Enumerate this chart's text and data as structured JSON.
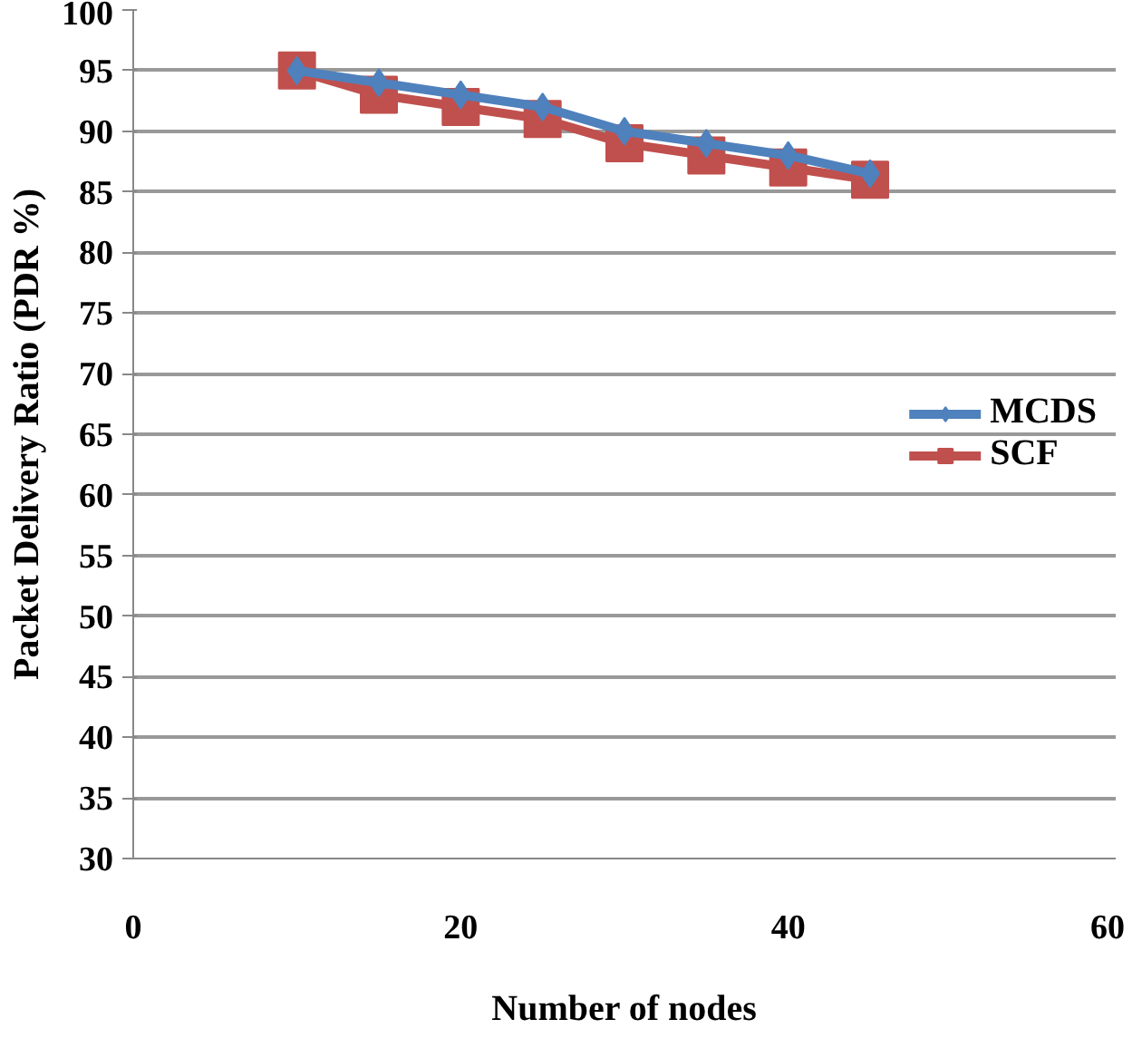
{
  "chart_data": {
    "type": "line",
    "xlabel": "Number of nodes",
    "ylabel": "Packet Delivery Ratio (PDR %)",
    "x": [
      10,
      15,
      20,
      25,
      30,
      35,
      40,
      45
    ],
    "series": [
      {
        "name": "MCDS",
        "color": "#4f81bd",
        "marker": "diamond",
        "values": [
          95,
          94,
          93,
          92,
          90,
          89,
          88,
          86.5
        ]
      },
      {
        "name": "SCF",
        "color": "#c0504d",
        "marker": "square",
        "values": [
          95,
          93,
          92,
          91,
          89,
          88,
          87,
          86
        ]
      }
    ],
    "xlim": [
      0,
      60
    ],
    "xticks": [
      0,
      20,
      40,
      60
    ],
    "ylim": [
      30,
      100
    ],
    "yticks": [
      30,
      35,
      40,
      45,
      50,
      55,
      60,
      65,
      70,
      75,
      80,
      85,
      90,
      95,
      100
    ],
    "grid": "y",
    "legend": "right",
    "line_style": "solid"
  }
}
